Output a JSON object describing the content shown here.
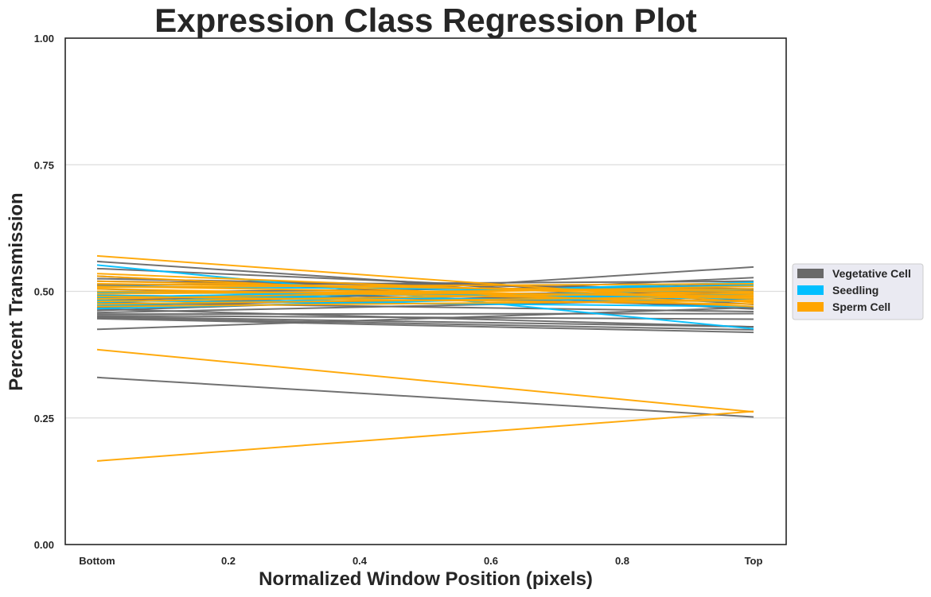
{
  "chart_data": {
    "type": "line",
    "title": "Expression Class Regression Plot",
    "xlabel": "Normalized Window Position (pixels)",
    "ylabel": "Percent Transmission",
    "xlim": [
      0,
      1
    ],
    "ylim": [
      0,
      1
    ],
    "x_ticks": [
      0,
      0.2,
      0.4,
      0.6,
      0.8,
      1.0
    ],
    "x_tick_labels": [
      "Bottom",
      "0.2",
      "0.4",
      "0.6",
      "0.8",
      "Top"
    ],
    "y_ticks": [
      0,
      0.25,
      0.5,
      0.75,
      1.0
    ],
    "y_tick_labels": [
      "0.00",
      "0.25",
      "0.50",
      "0.75",
      "1.00"
    ],
    "grid": "horizontal",
    "legend_position": "right",
    "legend": [
      {
        "name": "Vegetative Cell",
        "color": "#696969"
      },
      {
        "name": "Seedling",
        "color": "#00BFFF"
      },
      {
        "name": "Sperm Cell",
        "color": "#FFA500"
      }
    ],
    "series": [
      {
        "class": "Vegetative Cell",
        "color": "#696969",
        "lines": [
          [
            0.559,
            0.474
          ],
          [
            0.545,
            0.49
          ],
          [
            0.53,
            0.465
          ],
          [
            0.525,
            0.502
          ],
          [
            0.52,
            0.505
          ],
          [
            0.512,
            0.52
          ],
          [
            0.505,
            0.47
          ],
          [
            0.498,
            0.51
          ],
          [
            0.492,
            0.48
          ],
          [
            0.488,
            0.5
          ],
          [
            0.482,
            0.514
          ],
          [
            0.478,
            0.46
          ],
          [
            0.472,
            0.495
          ],
          [
            0.468,
            0.527
          ],
          [
            0.466,
            0.548
          ],
          [
            0.462,
            0.505
          ],
          [
            0.458,
            0.485
          ],
          [
            0.455,
            0.456
          ],
          [
            0.452,
            0.445
          ],
          [
            0.45,
            0.43
          ],
          [
            0.448,
            0.424
          ],
          [
            0.446,
            0.419
          ],
          [
            0.465,
            0.43
          ],
          [
            0.425,
            0.468
          ],
          [
            0.33,
            0.252
          ]
        ]
      },
      {
        "class": "Seedling",
        "color": "#00BFFF",
        "lines": [
          [
            0.552,
            0.426
          ],
          [
            0.51,
            0.5
          ],
          [
            0.498,
            0.49
          ],
          [
            0.492,
            0.48
          ],
          [
            0.488,
            0.512
          ],
          [
            0.482,
            0.47
          ],
          [
            0.478,
            0.518
          ],
          [
            0.472,
            0.505
          ],
          [
            0.466,
            0.495
          ],
          [
            0.5,
            0.485
          ]
        ]
      },
      {
        "class": "Sperm Cell",
        "color": "#FFA500",
        "lines": [
          [
            0.57,
            0.478
          ],
          [
            0.535,
            0.485
          ],
          [
            0.53,
            0.47
          ],
          [
            0.52,
            0.495
          ],
          [
            0.515,
            0.5
          ],
          [
            0.51,
            0.488
          ],
          [
            0.505,
            0.48
          ],
          [
            0.5,
            0.492
          ],
          [
            0.495,
            0.505
          ],
          [
            0.49,
            0.475
          ],
          [
            0.485,
            0.51
          ],
          [
            0.48,
            0.498
          ],
          [
            0.475,
            0.49
          ],
          [
            0.47,
            0.482
          ],
          [
            0.508,
            0.515
          ],
          [
            0.385,
            0.262
          ],
          [
            0.165,
            0.263
          ]
        ]
      }
    ]
  }
}
